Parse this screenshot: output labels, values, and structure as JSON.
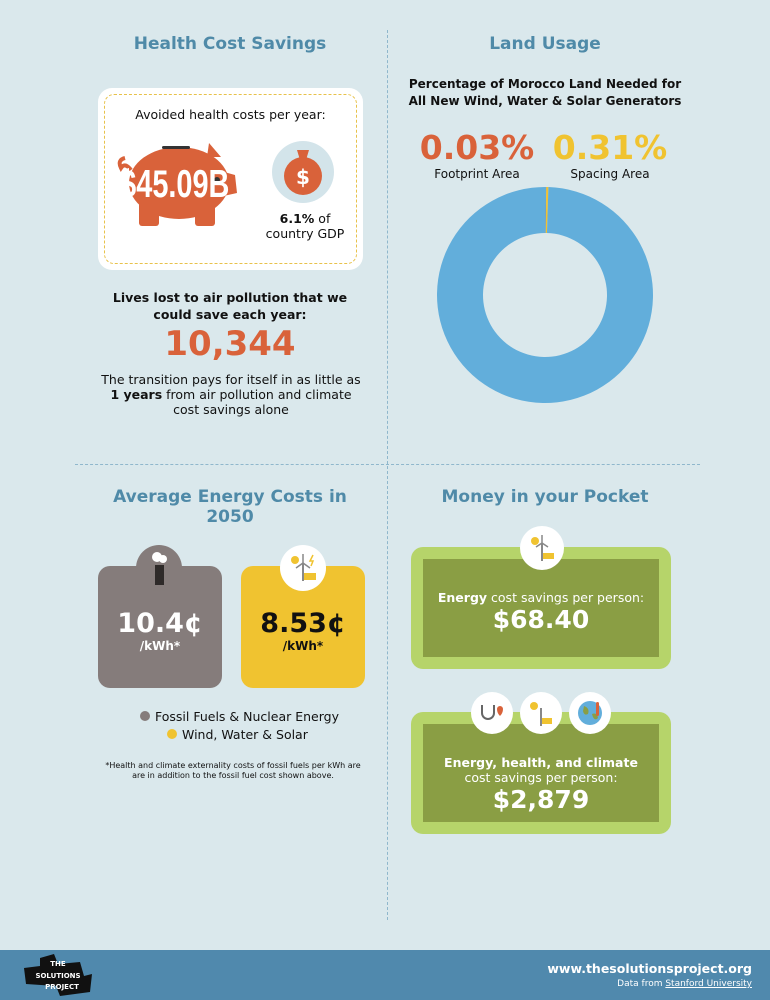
{
  "health": {
    "title": "Health Cost Savings",
    "card_label": "Avoided health costs per year:",
    "amount": "$45.09B",
    "gdp_pct": "6.1%",
    "gdp_text": "of",
    "gdp_text2": "country GDP",
    "lives_label": "Lives lost to air pollution that we could save each year:",
    "lives": "10,344",
    "payback_pre": "The transition pays for itself in as little as",
    "payback_years": "1 years",
    "payback_post": "from air pollution and climate cost savings alone"
  },
  "land": {
    "title": "Land Usage",
    "subtitle": "Percentage of Morocco Land Needed for All New Wind, Water & Solar Generators",
    "footprint_value": "0.03%",
    "footprint_label": "Footprint Area",
    "spacing_value": "0.31%",
    "spacing_label": "Spacing Area",
    "footprint_pct": 0.03,
    "spacing_pct": 0.31,
    "colors": {
      "footprint": "#d9623a",
      "spacing": "#f0c330",
      "rest": "#62aedb"
    }
  },
  "costs": {
    "title": "Average Energy Costs in 2050",
    "fossil_value": "10.4¢",
    "fossil_unit": "/kWh*",
    "wws_value": "8.53¢",
    "wws_unit": "/kWh*",
    "legend_fossil": "Fossil Fuels & Nuclear Energy",
    "legend_wws": "Wind, Water & Solar",
    "footnote": "*Health and climate externality costs of fossil fuels per kWh are are in addition to the fossil fuel cost shown above.",
    "colors": {
      "fossil": "#857c7b",
      "wws": "#f0c330"
    }
  },
  "pocket": {
    "title": "Money in your Pocket",
    "energy_label_bold": "Energy",
    "energy_label": "cost savings per person:",
    "energy_value": "$68.40",
    "total_label": "Energy, health, and climate",
    "total_label2": "cost savings per person:",
    "total_value": "$2,879"
  },
  "footer": {
    "logo": "THE SOLUTIONS PROJECT",
    "url": "www.thesolutionsproject.org",
    "data_from": "Data from",
    "source": "Stanford University"
  }
}
